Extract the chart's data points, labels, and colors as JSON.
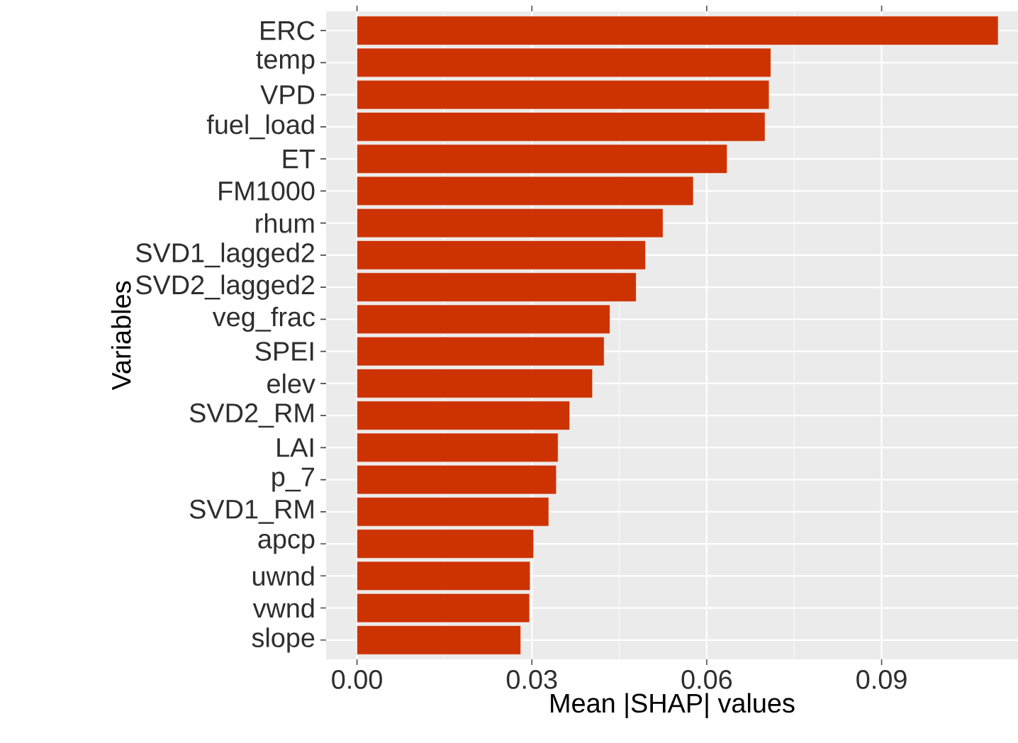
{
  "chart_data": {
    "type": "bar",
    "orientation": "horizontal",
    "xlabel": "Mean |SHAP| values",
    "ylabel": "Variables",
    "categories": [
      "ERC",
      "temp",
      "VPD",
      "fuel_load",
      "ET",
      "FM1000",
      "rhum",
      "SVD1_lagged2",
      "SVD2_lagged2",
      "veg_frac",
      "SPEI",
      "elev",
      "SVD2_RM",
      "LAI",
      "p_7",
      "SVD1_RM",
      "apcp",
      "uwnd",
      "vwnd",
      "slope"
    ],
    "values": [
      0.11,
      0.071,
      0.0707,
      0.07,
      0.0635,
      0.0577,
      0.0525,
      0.0495,
      0.0479,
      0.0434,
      0.0424,
      0.0404,
      0.0365,
      0.0345,
      0.0342,
      0.0329,
      0.0303,
      0.0297,
      0.0296,
      0.0281
    ],
    "color": "#cc3300",
    "xlim": [
      -0.0053,
      0.1134
    ],
    "xticks": [
      {
        "value": 0,
        "label": "0.00"
      },
      0.03,
      0.06,
      0.09
    ],
    "grid": true
  }
}
